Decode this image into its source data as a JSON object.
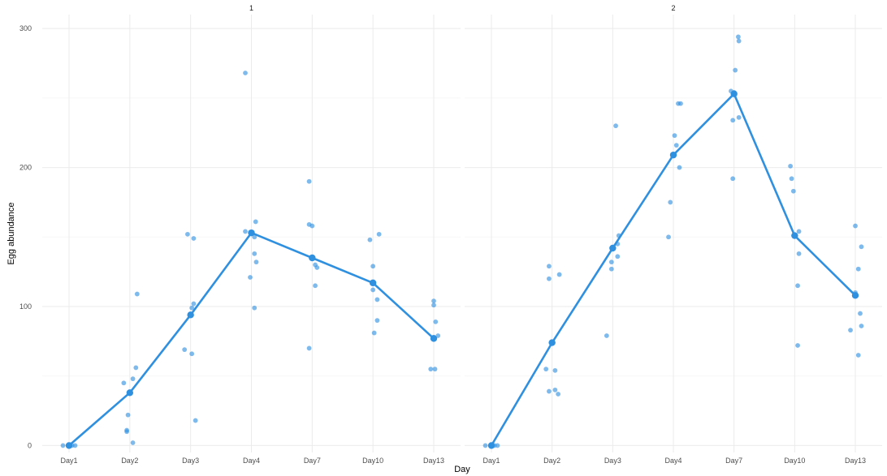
{
  "chart_data": {
    "type": "scatter",
    "xlabel": "Day",
    "ylabel": "Egg abundance",
    "categories": [
      "Day1",
      "Day2",
      "Day3",
      "Day4",
      "Day7",
      "Day10",
      "Day13"
    ],
    "yticks": [
      0,
      100,
      200,
      300
    ],
    "ylim": [
      -5,
      310
    ],
    "grid": true,
    "color": "#3090e0",
    "panels": [
      {
        "label": "1",
        "mean_line": [
          0,
          38,
          94,
          153,
          135,
          117,
          77
        ],
        "points": [
          [
            [
              -0.1,
              0
            ],
            [
              0,
              0
            ],
            [
              0.05,
              0
            ],
            [
              0.1,
              0
            ]
          ],
          [
            [
              -0.1,
              45
            ],
            [
              0.05,
              48
            ],
            [
              0.1,
              56
            ],
            [
              -0.03,
              22
            ],
            [
              -0.05,
              11
            ],
            [
              0.05,
              2
            ],
            [
              0.12,
              109
            ],
            [
              -0.05,
              10
            ]
          ],
          [
            [
              -0.05,
              152
            ],
            [
              0.05,
              149
            ],
            [
              0.05,
              102
            ],
            [
              0.02,
              99
            ],
            [
              -0.1,
              69
            ],
            [
              0.02,
              66
            ],
            [
              0.08,
              18
            ]
          ],
          [
            [
              -0.1,
              154
            ],
            [
              0,
              153
            ],
            [
              0.07,
              161
            ],
            [
              0.05,
              150
            ],
            [
              0.05,
              138
            ],
            [
              0.08,
              132
            ],
            [
              -0.02,
              121
            ],
            [
              0.05,
              99
            ],
            [
              -0.1,
              268
            ]
          ],
          [
            [
              -0.05,
              190
            ],
            [
              -0.05,
              159
            ],
            [
              0,
              158
            ],
            [
              0.05,
              130
            ],
            [
              0.08,
              128
            ],
            [
              0.05,
              115
            ],
            [
              -0.05,
              70
            ]
          ],
          [
            [
              -0.05,
              148
            ],
            [
              0.1,
              152
            ],
            [
              0,
              129
            ],
            [
              0,
              112
            ],
            [
              0.07,
              105
            ],
            [
              0.07,
              90
            ],
            [
              0.02,
              81
            ]
          ],
          [
            [
              0,
              104
            ],
            [
              0,
              101
            ],
            [
              0.03,
              89
            ],
            [
              0.07,
              79
            ],
            [
              0,
              78
            ],
            [
              -0.05,
              55
            ],
            [
              0.02,
              55
            ]
          ]
        ]
      },
      {
        "label": "2",
        "mean_line": [
          0,
          74,
          142,
          209,
          253,
          151,
          108
        ],
        "points": [
          [
            [
              -0.1,
              0
            ],
            [
              0,
              0
            ],
            [
              0.05,
              0
            ],
            [
              0.1,
              0
            ]
          ],
          [
            [
              -0.05,
              129
            ],
            [
              -0.05,
              120
            ],
            [
              0.12,
              123
            ],
            [
              -0.1,
              55
            ],
            [
              -0.05,
              39
            ],
            [
              0.05,
              40
            ],
            [
              0.1,
              37
            ],
            [
              0.05,
              54
            ]
          ],
          [
            [
              0.05,
              230
            ],
            [
              0.1,
              151
            ],
            [
              0.08,
              145
            ],
            [
              0.08,
              136
            ],
            [
              -0.02,
              132
            ],
            [
              -0.02,
              127
            ],
            [
              -0.1,
              79
            ]
          ],
          [
            [
              0.08,
              246
            ],
            [
              0.12,
              246
            ],
            [
              0.02,
              223
            ],
            [
              0.05,
              216
            ],
            [
              0.1,
              200
            ],
            [
              -0.05,
              175
            ],
            [
              -0.08,
              150
            ]
          ],
          [
            [
              0.07,
              294
            ],
            [
              0.08,
              291
            ],
            [
              0.02,
              270
            ],
            [
              -0.05,
              255
            ],
            [
              0,
              254
            ],
            [
              0.08,
              236
            ],
            [
              -0.02,
              234
            ],
            [
              -0.02,
              192
            ]
          ],
          [
            [
              -0.07,
              201
            ],
            [
              -0.05,
              192
            ],
            [
              -0.02,
              183
            ],
            [
              0.07,
              154
            ],
            [
              0.07,
              138
            ],
            [
              0.05,
              115
            ],
            [
              0.05,
              72
            ]
          ],
          [
            [
              0,
              158
            ],
            [
              0.1,
              143
            ],
            [
              0.05,
              127
            ],
            [
              0,
              110
            ],
            [
              0.08,
              95
            ],
            [
              0.1,
              86
            ],
            [
              -0.08,
              83
            ],
            [
              0.05,
              65
            ]
          ]
        ]
      }
    ]
  }
}
